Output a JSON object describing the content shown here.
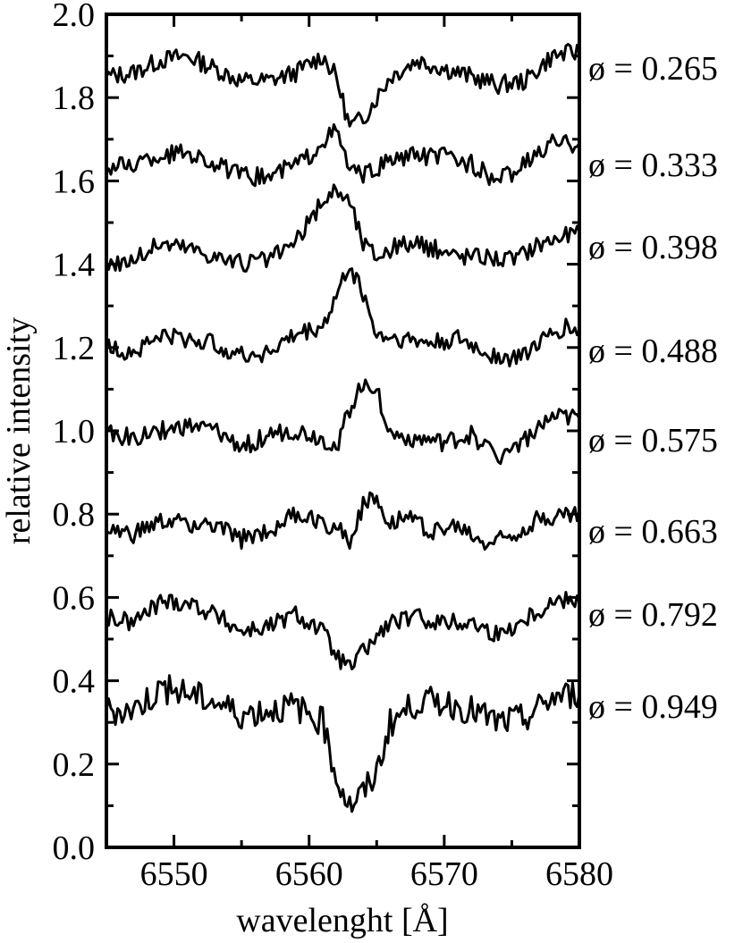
{
  "chart_data": {
    "type": "line",
    "title": "",
    "xlabel": "wavelenght [Å]",
    "ylabel": "relative intensity",
    "xlim": [
      6545,
      6580
    ],
    "ylim": [
      0.0,
      2.0
    ],
    "x_ticks": [
      6550,
      6560,
      6570,
      6580
    ],
    "x_tick_labels": [
      "6550",
      "6560",
      "6570",
      "6580"
    ],
    "y_ticks": [
      0.0,
      0.2,
      0.4,
      0.6,
      0.8,
      1.0,
      1.2,
      1.4,
      1.6,
      1.8,
      2.0
    ],
    "y_tick_labels": [
      "0.0",
      "0.2",
      "0.4",
      "0.6",
      "0.8",
      "1.0",
      "1.2",
      "1.4",
      "1.6",
      "1.8",
      "2.0"
    ],
    "grid": false,
    "legend": "none",
    "series": [
      {
        "label": "ø = 0.265",
        "x": [
          6545,
          6547,
          6549,
          6551,
          6553,
          6555,
          6557,
          6559,
          6561,
          6562,
          6563,
          6564,
          6566,
          6568,
          6570,
          6572,
          6574,
          6576,
          6578,
          6580
        ],
        "y": [
          1.85,
          1.86,
          1.89,
          1.9,
          1.87,
          1.84,
          1.84,
          1.86,
          1.9,
          1.85,
          1.73,
          1.75,
          1.85,
          1.89,
          1.87,
          1.85,
          1.83,
          1.84,
          1.9,
          1.91
        ]
      },
      {
        "label": "ø = 0.333",
        "x": [
          6545,
          6547,
          6549,
          6551,
          6553,
          6555,
          6557,
          6559,
          6560,
          6561,
          6562,
          6563,
          6564,
          6566,
          6568,
          6570,
          6572,
          6574,
          6576,
          6578,
          6580
        ],
        "y": [
          1.63,
          1.64,
          1.66,
          1.67,
          1.64,
          1.61,
          1.61,
          1.64,
          1.66,
          1.7,
          1.72,
          1.63,
          1.61,
          1.65,
          1.66,
          1.66,
          1.64,
          1.6,
          1.64,
          1.69,
          1.69
        ]
      },
      {
        "label": "ø = 0.398",
        "x": [
          6545,
          6547,
          6549,
          6551,
          6553,
          6555,
          6557,
          6559,
          6560,
          6561,
          6562,
          6563,
          6564,
          6565,
          6567,
          6569,
          6571,
          6573,
          6575,
          6577,
          6580
        ],
        "y": [
          1.4,
          1.41,
          1.45,
          1.44,
          1.42,
          1.4,
          1.41,
          1.45,
          1.5,
          1.55,
          1.58,
          1.55,
          1.45,
          1.42,
          1.45,
          1.44,
          1.42,
          1.42,
          1.41,
          1.45,
          1.48
        ]
      },
      {
        "label": "ø = 0.488",
        "x": [
          6545,
          6547,
          6549,
          6551,
          6553,
          6555,
          6557,
          6559,
          6561,
          6562,
          6563,
          6564,
          6565,
          6567,
          6569,
          6571,
          6573,
          6575,
          6577,
          6579,
          6580
        ],
        "y": [
          1.2,
          1.19,
          1.23,
          1.22,
          1.21,
          1.18,
          1.19,
          1.23,
          1.25,
          1.32,
          1.4,
          1.33,
          1.23,
          1.22,
          1.21,
          1.22,
          1.19,
          1.17,
          1.21,
          1.25,
          1.24
        ]
      },
      {
        "label": "ø = 0.575",
        "x": [
          6545,
          6547,
          6549,
          6551,
          6553,
          6555,
          6557,
          6559,
          6561,
          6562,
          6563,
          6564,
          6565,
          6566,
          6568,
          6570,
          6572,
          6574,
          6576,
          6578,
          6580
        ],
        "y": [
          1.0,
          0.98,
          1.0,
          1.01,
          1.0,
          0.96,
          0.99,
          1.0,
          0.98,
          0.96,
          1.05,
          1.12,
          1.1,
          0.99,
          0.98,
          0.97,
          0.99,
          0.94,
          0.98,
          1.03,
          1.03
        ]
      },
      {
        "label": "ø = 0.663",
        "x": [
          6545,
          6547,
          6549,
          6551,
          6553,
          6555,
          6557,
          6559,
          6561,
          6562,
          6563,
          6564,
          6565,
          6566,
          6567,
          6569,
          6571,
          6573,
          6575,
          6577,
          6580
        ],
        "y": [
          0.76,
          0.75,
          0.78,
          0.78,
          0.77,
          0.74,
          0.76,
          0.8,
          0.78,
          0.77,
          0.74,
          0.82,
          0.84,
          0.78,
          0.8,
          0.76,
          0.77,
          0.73,
          0.75,
          0.79,
          0.8
        ]
      },
      {
        "label": "ø = 0.792",
        "x": [
          6545,
          6547,
          6549,
          6551,
          6553,
          6555,
          6557,
          6559,
          6561,
          6562,
          6563,
          6564,
          6566,
          6568,
          6570,
          6572,
          6574,
          6576,
          6578,
          6580
        ],
        "y": [
          0.55,
          0.54,
          0.59,
          0.59,
          0.56,
          0.52,
          0.53,
          0.56,
          0.52,
          0.46,
          0.43,
          0.47,
          0.54,
          0.55,
          0.54,
          0.54,
          0.51,
          0.55,
          0.59,
          0.6
        ]
      },
      {
        "label": "ø = 0.949",
        "x": [
          6545,
          6547,
          6549,
          6551,
          6553,
          6555,
          6557,
          6559,
          6561,
          6562,
          6563,
          6564,
          6565,
          6566,
          6568,
          6570,
          6572,
          6574,
          6576,
          6578,
          6580
        ],
        "y": [
          0.33,
          0.33,
          0.38,
          0.37,
          0.35,
          0.32,
          0.33,
          0.34,
          0.3,
          0.17,
          0.1,
          0.13,
          0.18,
          0.3,
          0.35,
          0.35,
          0.33,
          0.3,
          0.31,
          0.36,
          0.37
        ]
      }
    ]
  }
}
